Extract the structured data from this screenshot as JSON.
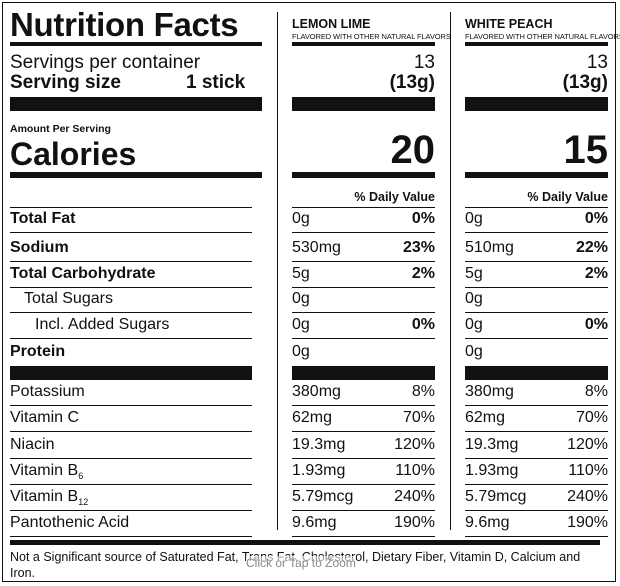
{
  "label": {
    "title": "Nutrition Facts",
    "servings_label": "Servings per container",
    "serving_size_label": "Serving size",
    "serving_size_value": "1 stick",
    "amount_per_serving": "Amount Per Serving",
    "calories_label": "Calories",
    "dv_header": "% Daily Value",
    "footnote": "Not a Significant source of Saturated Fat, Trans Fat, Cholesterol, Dietary Fiber, Vitamin D, Calcium and Iron.",
    "zoom_hint": "Click or Tap to Zoom"
  },
  "flavors": [
    {
      "name": "LEMON LIME",
      "subtitle": "FLAVORED WITH OTHER NATURAL FLAVORS",
      "servings": "13",
      "serving_size": "(13g)",
      "calories": "20",
      "values": [
        {
          "amount": "0g",
          "dv": "0%"
        },
        {
          "amount": "530mg",
          "dv": "23%"
        },
        {
          "amount": "5g",
          "dv": "2%"
        },
        {
          "amount": "0g",
          "dv": ""
        },
        {
          "amount": "0g",
          "dv": "0%"
        },
        {
          "amount": "0g",
          "dv": ""
        },
        {
          "amount": "380mg",
          "dv": "8%"
        },
        {
          "amount": "62mg",
          "dv": "70%"
        },
        {
          "amount": "19.3mg",
          "dv": "120%"
        },
        {
          "amount": "1.93mg",
          "dv": "110%"
        },
        {
          "amount": "5.79mcg",
          "dv": "240%"
        },
        {
          "amount": "9.6mg",
          "dv": "190%"
        }
      ]
    },
    {
      "name": "WHITE PEACH",
      "subtitle": "FLAVORED WITH OTHER NATURAL FLAVORS",
      "servings": "13",
      "serving_size": "(13g)",
      "calories": "15",
      "values": [
        {
          "amount": "0g",
          "dv": "0%"
        },
        {
          "amount": "510mg",
          "dv": "22%"
        },
        {
          "amount": "5g",
          "dv": "2%"
        },
        {
          "amount": "0g",
          "dv": ""
        },
        {
          "amount": "0g",
          "dv": "0%"
        },
        {
          "amount": "0g",
          "dv": ""
        },
        {
          "amount": "380mg",
          "dv": "8%"
        },
        {
          "amount": "62mg",
          "dv": "70%"
        },
        {
          "amount": "19.3mg",
          "dv": "120%"
        },
        {
          "amount": "1.93mg",
          "dv": "110%"
        },
        {
          "amount": "5.79mcg",
          "dv": "240%"
        },
        {
          "amount": "9.6mg",
          "dv": "190%"
        }
      ]
    }
  ],
  "nutrients": [
    {
      "name": "Total Fat",
      "bold": true
    },
    {
      "name": "Sodium",
      "bold": true
    },
    {
      "name": "Total Carbohydrate",
      "bold": true
    },
    {
      "name": "Total Sugars",
      "bold": false
    },
    {
      "name": "Incl. Added Sugars",
      "bold": false
    },
    {
      "name": "Protein",
      "bold": true
    },
    {
      "name": "Potassium",
      "bold": false
    },
    {
      "name": "Vitamin C",
      "bold": false
    },
    {
      "name": "Niacin",
      "bold": false
    },
    {
      "name": "Vitamin B",
      "sub": "6",
      "bold": false
    },
    {
      "name": "Vitamin B",
      "sub": "12",
      "bold": false
    },
    {
      "name": "Pantothenic Acid",
      "bold": false
    }
  ]
}
